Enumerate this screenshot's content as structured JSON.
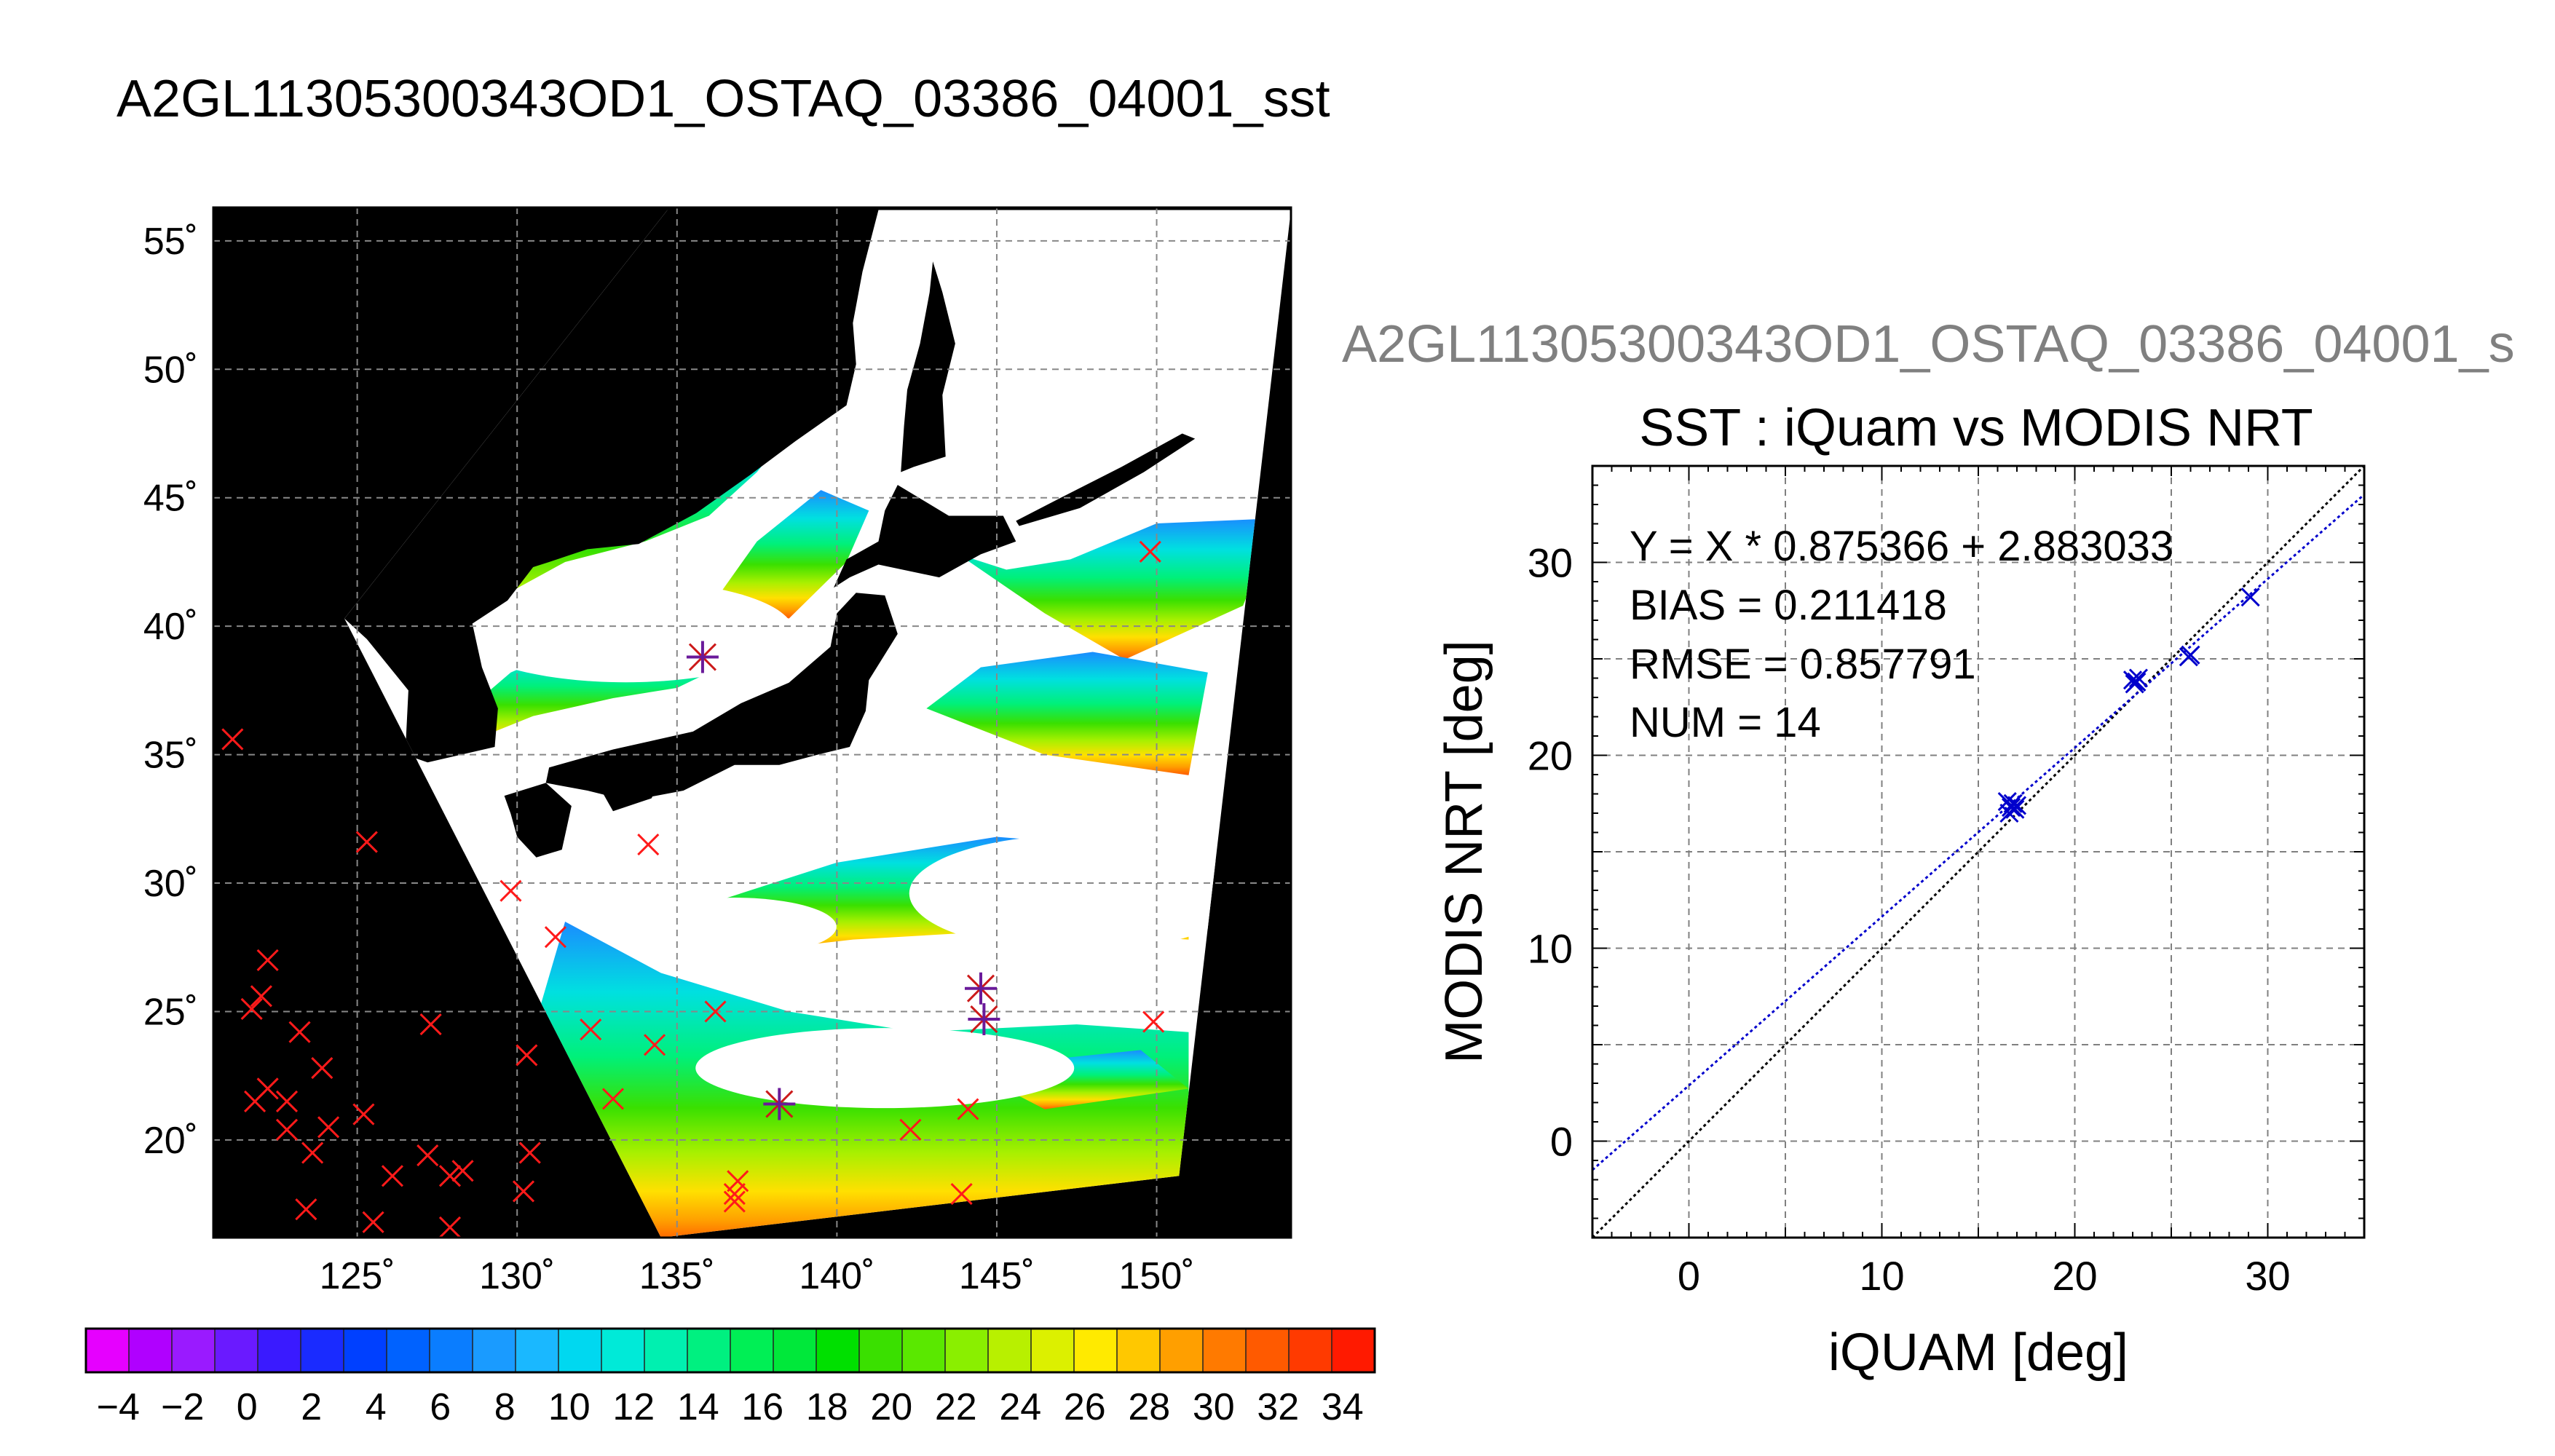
{
  "page": {
    "title": "A2GL11305300343OD1_OSTAQ_03386_04001_sst",
    "right_title": "A2GL11305300343OD1_OSTAQ_03386_04001_s"
  },
  "chart_data": [
    {
      "type": "heatmap",
      "name": "SST map",
      "xlabel": "",
      "ylabel": "",
      "xlim": [
        120.5,
        154.2
      ],
      "ylim": [
        16.2,
        56.3
      ],
      "x_ticks": [
        125,
        130,
        135,
        140,
        145,
        150
      ],
      "y_ticks": [
        20,
        25,
        30,
        35,
        40,
        45,
        50,
        55
      ],
      "x_tick_labels": [
        "125˚",
        "130˚",
        "135˚",
        "140˚",
        "145˚",
        "150˚"
      ],
      "y_tick_labels": [
        "20˚",
        "25˚",
        "30˚",
        "35˚",
        "40˚",
        "45˚",
        "50˚",
        "55˚"
      ],
      "grid": true,
      "background_color": "#000000",
      "cloud_color": "#ffffff",
      "swath": [
        [
          134.7,
          56.2
        ],
        [
          154.2,
          56.2
        ],
        [
          150.7,
          18.6
        ],
        [
          134.5,
          16.2
        ],
        [
          124.6,
          40.3
        ]
      ],
      "land": [
        {
          "name": "honshu",
          "poly": [
            [
              131.0,
              34.5
            ],
            [
              133.0,
              35.2
            ],
            [
              135.5,
              35.9
            ],
            [
              137.0,
              37.0
            ],
            [
              138.5,
              37.8
            ],
            [
              139.8,
              39.2
            ],
            [
              140.0,
              40.5
            ],
            [
              140.6,
              41.3
            ],
            [
              141.5,
              41.2
            ],
            [
              141.9,
              39.7
            ],
            [
              141.0,
              37.9
            ],
            [
              140.9,
              36.7
            ],
            [
              140.4,
              35.3
            ],
            [
              139.4,
              35.0
            ],
            [
              138.2,
              34.6
            ],
            [
              136.8,
              34.6
            ],
            [
              135.2,
              33.6
            ],
            [
              133.5,
              33.2
            ],
            [
              132.2,
              33.6
            ],
            [
              130.9,
              33.9
            ]
          ]
        },
        {
          "name": "kyushu",
          "poly": [
            [
              129.6,
              33.4
            ],
            [
              130.9,
              33.9
            ],
            [
              131.7,
              33.0
            ],
            [
              131.4,
              31.3
            ],
            [
              130.6,
              31.0
            ],
            [
              130.0,
              31.8
            ],
            [
              129.8,
              32.7
            ]
          ]
        },
        {
          "name": "shikoku",
          "poly": [
            [
              132.5,
              33.9
            ],
            [
              134.6,
              34.2
            ],
            [
              134.2,
              33.3
            ],
            [
              133.0,
              32.8
            ]
          ]
        },
        {
          "name": "hokkaido",
          "poly": [
            [
              139.9,
              41.5
            ],
            [
              140.3,
              42.6
            ],
            [
              141.3,
              43.3
            ],
            [
              141.5,
              44.5
            ],
            [
              141.9,
              45.5
            ],
            [
              143.5,
              44.3
            ],
            [
              145.2,
              44.3
            ],
            [
              145.6,
              43.3
            ],
            [
              144.5,
              42.8
            ],
            [
              143.2,
              41.9
            ],
            [
              141.3,
              42.4
            ],
            [
              140.4,
              41.9
            ]
          ]
        },
        {
          "name": "sakhalin",
          "poly": [
            [
              142.0,
              46.0
            ],
            [
              142.1,
              47.8
            ],
            [
              142.2,
              49.2
            ],
            [
              142.6,
              51.0
            ],
            [
              142.9,
              53.0
            ],
            [
              143.0,
              54.2
            ],
            [
              143.3,
              53.0
            ],
            [
              143.7,
              51.0
            ],
            [
              143.3,
              49.0
            ],
            [
              143.4,
              46.6
            ],
            [
              142.4,
              46.2
            ]
          ]
        },
        {
          "name": "mainland",
          "poly": [
            [
              134.7,
              56.2
            ],
            [
              141.3,
              56.2
            ],
            [
              140.8,
              53.8
            ],
            [
              140.5,
              51.8
            ],
            [
              140.6,
              50.2
            ],
            [
              140.3,
              48.6
            ],
            [
              138.7,
              47.2
            ],
            [
              137.3,
              45.9
            ],
            [
              135.6,
              44.4
            ],
            [
              133.8,
              43.2
            ],
            [
              132.2,
              43.0
            ],
            [
              131.0,
              42.5
            ],
            [
              130.5,
              42.3
            ],
            [
              129.7,
              41.0
            ],
            [
              128.6,
              40.1
            ],
            [
              128.9,
              38.4
            ],
            [
              129.4,
              36.8
            ],
            [
              129.3,
              35.3
            ],
            [
              127.2,
              34.7
            ],
            [
              126.5,
              35.0
            ],
            [
              126.6,
              37.5
            ],
            [
              125.3,
              39.5
            ],
            [
              124.6,
              40.3
            ]
          ]
        },
        {
          "name": "kurils",
          "poly": [
            [
              145.7,
              43.9
            ],
            [
              147.6,
              44.6
            ],
            [
              149.6,
              46.0
            ],
            [
              151.2,
              47.3
            ],
            [
              150.8,
              47.5
            ],
            [
              148.9,
              46.2
            ],
            [
              147.0,
              45.0
            ],
            [
              145.6,
              44.1
            ]
          ]
        }
      ],
      "markers_red": [
        [
          121.1,
          35.6
        ],
        [
          125.3,
          31.6
        ],
        [
          129.8,
          29.7
        ],
        [
          131.2,
          27.9
        ],
        [
          122.2,
          27.0
        ],
        [
          121.7,
          25.1
        ],
        [
          122.0,
          25.6
        ],
        [
          127.3,
          24.5
        ],
        [
          123.2,
          24.2
        ],
        [
          132.3,
          24.3
        ],
        [
          134.3,
          23.7
        ],
        [
          130.3,
          23.3
        ],
        [
          122.2,
          22.0
        ],
        [
          123.9,
          22.8
        ],
        [
          121.8,
          21.5
        ],
        [
          122.8,
          21.5
        ],
        [
          133.0,
          21.6
        ],
        [
          125.2,
          21.0
        ],
        [
          124.1,
          20.5
        ],
        [
          122.8,
          20.4
        ],
        [
          123.6,
          19.5
        ],
        [
          130.4,
          19.5
        ],
        [
          127.2,
          19.4
        ],
        [
          128.3,
          18.8
        ],
        [
          126.1,
          18.6
        ],
        [
          127.9,
          18.6
        ],
        [
          130.2,
          18.0
        ],
        [
          123.4,
          17.3
        ],
        [
          125.5,
          16.8
        ],
        [
          127.9,
          16.6
        ],
        [
          134.1,
          31.5
        ],
        [
          136.2,
          25.0
        ],
        [
          142.3,
          20.4
        ],
        [
          144.1,
          21.2
        ],
        [
          143.9,
          17.9
        ],
        [
          136.9,
          18.4
        ],
        [
          136.8,
          17.9
        ],
        [
          136.8,
          17.6
        ],
        [
          149.8,
          42.9
        ],
        [
          149.9,
          24.6
        ]
      ],
      "markers_star": [
        [
          135.8,
          38.8
        ],
        [
          138.2,
          21.4
        ],
        [
          144.5,
          25.9
        ],
        [
          144.6,
          24.7
        ]
      ],
      "colorbar": {
        "vmin": -5,
        "vmax": 35,
        "tick_labels": [
          "−4",
          "−2",
          "0",
          "2",
          "4",
          "6",
          "8",
          "10",
          "12",
          "14",
          "16",
          "18",
          "20",
          "22",
          "24",
          "26",
          "28",
          "30",
          "32",
          "34"
        ],
        "colors": [
          "#e600ff",
          "#b000ff",
          "#9a1aff",
          "#6a1aff",
          "#3a1aff",
          "#1a2bff",
          "#0040ff",
          "#0062ff",
          "#0a7dff",
          "#1a9bff",
          "#1ab8ff",
          "#00d8f0",
          "#00ead8",
          "#00f0b0",
          "#00f080",
          "#00ef55",
          "#00e83a",
          "#00e000",
          "#3ae000",
          "#5ae800",
          "#8aef00",
          "#b8f000",
          "#dcf000",
          "#ffea00",
          "#ffc800",
          "#ff9f00",
          "#ff7a00",
          "#ff5a00",
          "#ff3a00",
          "#ff1a00"
        ]
      }
    },
    {
      "type": "scatter",
      "title": "SST : iQuam vs MODIS NRT",
      "xlabel": "iQUAM [deg]",
      "ylabel": "MODIS NRT [deg]",
      "xlim": [
        -5,
        35
      ],
      "ylim": [
        -5,
        35
      ],
      "x_ticks": [
        0,
        10,
        20,
        30
      ],
      "y_ticks": [
        0,
        10,
        20,
        30
      ],
      "grid": true,
      "annotations": [
        "Y = X * 0.875366 + 2.883033",
        "BIAS = 0.211418",
        "RMSE = 0.857791",
        "NUM = 14"
      ],
      "fit": {
        "slope": 0.875366,
        "intercept": 2.883033,
        "color": "#0000cc"
      },
      "identity_line": {
        "color": "#000000"
      },
      "point_color": "#0000cc",
      "points": [
        [
          16.5,
          17.6
        ],
        [
          16.7,
          17.3
        ],
        [
          16.8,
          17.5
        ],
        [
          16.9,
          17.2
        ],
        [
          17.0,
          17.4
        ],
        [
          16.6,
          17.0
        ],
        [
          23.0,
          23.9
        ],
        [
          23.2,
          23.8
        ],
        [
          23.1,
          23.7
        ],
        [
          23.3,
          24.0
        ],
        [
          23.2,
          23.8
        ],
        [
          25.9,
          25.1
        ],
        [
          26.0,
          25.2
        ],
        [
          29.1,
          28.2
        ]
      ]
    }
  ]
}
